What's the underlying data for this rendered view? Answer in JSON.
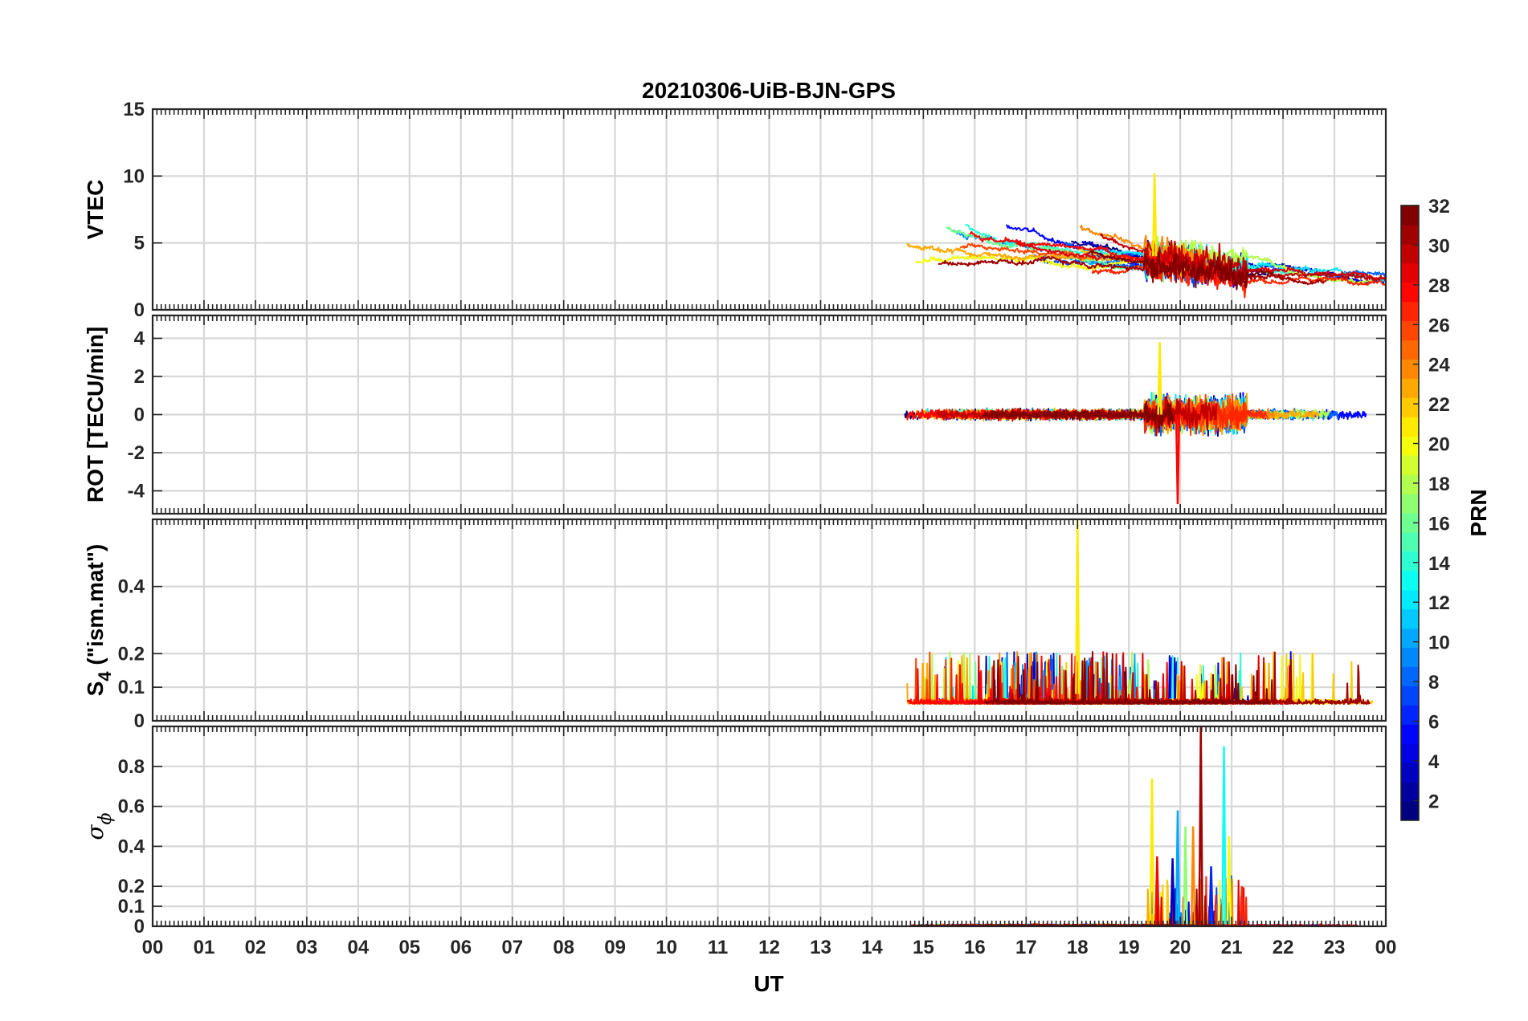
{
  "chart_data": {
    "type": "line",
    "title": "20210306-UiB-BJN-GPS",
    "xlabel": "UT",
    "x_ticks": [
      "00",
      "01",
      "02",
      "03",
      "04",
      "05",
      "06",
      "07",
      "08",
      "09",
      "10",
      "11",
      "12",
      "13",
      "14",
      "15",
      "16",
      "17",
      "18",
      "19",
      "20",
      "21",
      "22",
      "23",
      "00"
    ],
    "xlim": [
      0,
      24
    ],
    "grid": true,
    "colorbar": {
      "label": "PRN",
      "range": [
        1,
        32
      ],
      "ticks": [
        "2",
        "4",
        "6",
        "8",
        "10",
        "12",
        "14",
        "16",
        "18",
        "20",
        "22",
        "24",
        "26",
        "28",
        "30",
        "32"
      ],
      "colormap": "jet",
      "placement": "right"
    },
    "panels": [
      {
        "ylabel": "VTEC",
        "ylim": [
          0,
          15
        ],
        "y_ticks": [
          0,
          5,
          10,
          15
        ],
        "data_start_UT": 14.6,
        "typical_range": [
          1,
          8
        ],
        "peak": {
          "x": 19.5,
          "y": 10.2
        }
      },
      {
        "ylabel": "ROT [TECU/min]",
        "ylim": [
          -5.2,
          5.2
        ],
        "y_ticks": [
          -4,
          -2,
          0,
          2,
          4
        ],
        "data_start_UT": 14.6,
        "typical_range": [
          -1,
          1
        ],
        "extremes": [
          {
            "x": 19.6,
            "y": 3.8
          },
          {
            "x": 19.95,
            "y": -4.7
          }
        ]
      },
      {
        "ylabel_main": "S",
        "ylabel_sub": "4",
        "ylabel_rest": " (\"ism.mat\")",
        "ylim": [
          0,
          0.6
        ],
        "y_ticks": [
          0,
          0.1,
          0.2,
          0.4
        ],
        "data_start_UT": 14.6,
        "typical_range": [
          0.04,
          0.12
        ],
        "peak": {
          "x": 18.0,
          "y": 0.6
        }
      },
      {
        "ylabel_main": "σ",
        "ylabel_sub": "ϕ",
        "ylim": [
          0,
          1
        ],
        "y_ticks": [
          0,
          0.1,
          0.2,
          0.4,
          0.6,
          0.8
        ],
        "data_start_UT": 14.6,
        "typical_range": [
          0,
          0.03
        ],
        "spikes": [
          {
            "x": 19.45,
            "y": 0.74
          },
          {
            "x": 19.55,
            "y": 0.35
          },
          {
            "x": 19.85,
            "y": 0.34
          },
          {
            "x": 19.95,
            "y": 0.58
          },
          {
            "x": 20.1,
            "y": 0.5
          },
          {
            "x": 20.25,
            "y": 0.5
          },
          {
            "x": 20.4,
            "y": 1.0
          },
          {
            "x": 20.6,
            "y": 0.3
          },
          {
            "x": 20.85,
            "y": 0.9
          },
          {
            "x": 20.95,
            "y": 0.45
          },
          {
            "x": 21.2,
            "y": 0.2
          }
        ]
      }
    ]
  }
}
